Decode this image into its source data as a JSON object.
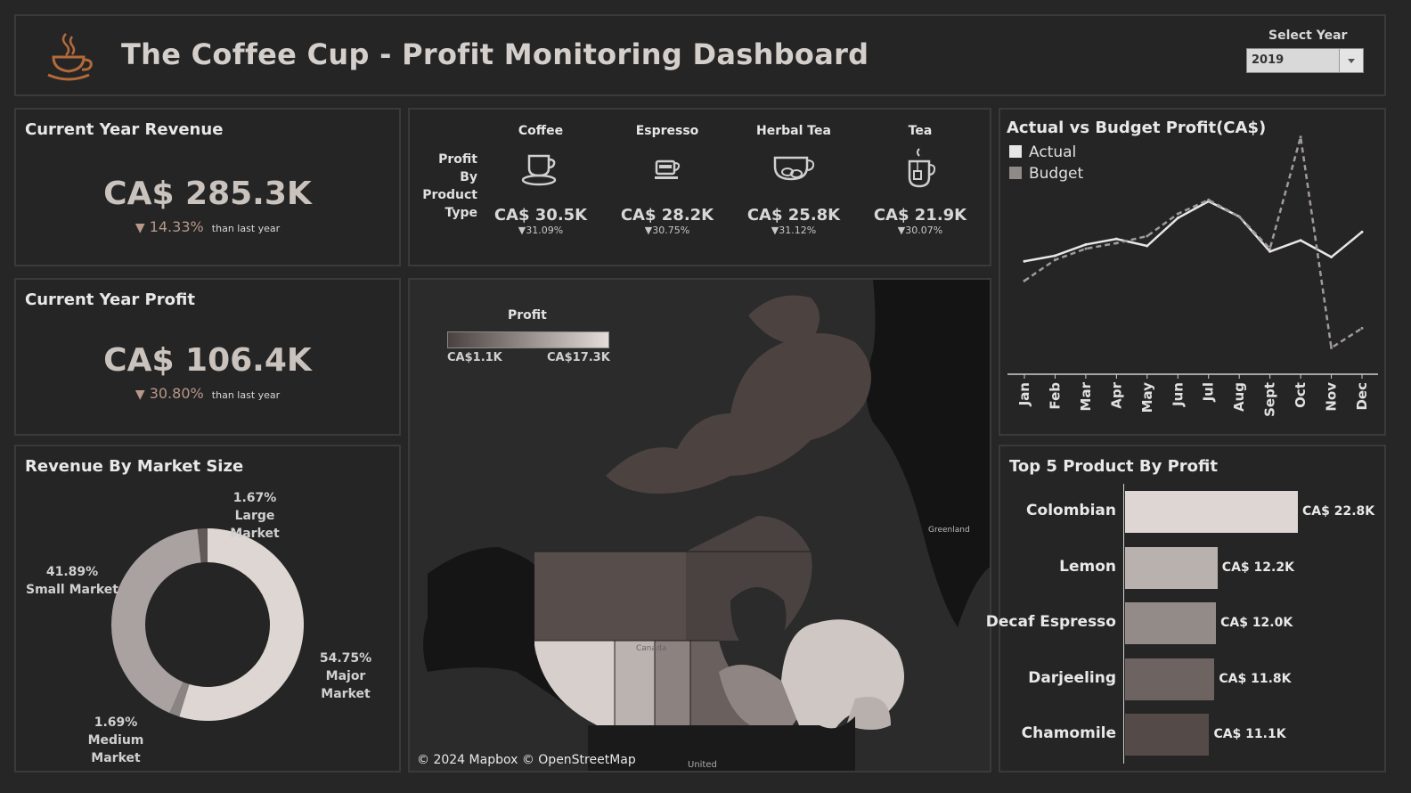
{
  "header": {
    "title": "The Coffee Cup - Profit Monitoring Dashboard",
    "year_label": "Select Year",
    "year_value": "2019"
  },
  "revenue": {
    "title": "Current Year Revenue",
    "value": "CA$ 285.3K",
    "change": "14.33%",
    "suffix": "than last year"
  },
  "profit": {
    "title": "Current Year Profit",
    "value": "CA$ 106.4K",
    "change": "30.80%",
    "suffix": "than last year"
  },
  "products": {
    "label_lines": [
      "Profit",
      "By",
      "Product",
      "Type"
    ],
    "items": [
      {
        "name": "Coffee",
        "value": "CA$ 30.5K",
        "change": "31.09%",
        "icon": "coffee-cup-icon"
      },
      {
        "name": "Espresso",
        "value": "CA$ 28.2K",
        "change": "30.75%",
        "icon": "espresso-icon"
      },
      {
        "name": "Herbal Tea",
        "value": "CA$ 25.8K",
        "change": "31.12%",
        "icon": "herbal-tea-icon"
      },
      {
        "name": "Tea",
        "value": "CA$ 21.9K",
        "change": "30.07%",
        "icon": "tea-icon"
      }
    ]
  },
  "market": {
    "title": "Revenue By Market Size",
    "segments": [
      {
        "name": "Major Market",
        "pct": "54.75%",
        "value": 54.75,
        "color": "#ddd6d3"
      },
      {
        "name": "Medium Market",
        "pct": "1.69%",
        "value": 1.69,
        "color": "#8a8583"
      },
      {
        "name": "Small Market",
        "pct": "41.89%",
        "value": 41.89,
        "color": "#aaa2a0"
      },
      {
        "name": "Large Market",
        "pct": "1.67%",
        "value": 1.67,
        "color": "#5f5957"
      }
    ]
  },
  "map": {
    "legend_title": "Profit",
    "legend_min": "CA$1.1K",
    "legend_max": "CA$17.3K",
    "copyright": "© 2024 Mapbox © OpenStreetMap",
    "label_greenland": "Greenland",
    "label_united": "United",
    "label_canada": "Canada",
    "colors": {
      "high": "#e4dcd8",
      "mid": "#8c8380",
      "low": "#4a4240"
    }
  },
  "chart_data": {
    "type": "line",
    "title": "Actual vs Budget Profit(CA$)",
    "categories": [
      "Jan",
      "Feb",
      "Mar",
      "Apr",
      "May",
      "Jun",
      "Jul",
      "Aug",
      "Sept",
      "Oct",
      "Nov",
      "Dec"
    ],
    "series": [
      {
        "name": "Actual",
        "values": [
          7.9,
          8.3,
          9.1,
          9.5,
          9.0,
          11.0,
          12.2,
          11.1,
          8.6,
          9.4,
          8.2,
          10.0
        ],
        "color": "#e6e6e6"
      },
      {
        "name": "Budget",
        "values": [
          6.5,
          8.0,
          8.8,
          9.2,
          9.7,
          11.3,
          12.3,
          11.1,
          8.8,
          16.8,
          1.7,
          3.1
        ],
        "color": "#a09a98"
      }
    ],
    "ylim": [
      0,
      18
    ],
    "grid": false,
    "legend": "top-left"
  },
  "top5": {
    "title": "Top 5 Product By Profit",
    "items": [
      {
        "name": "Colombian",
        "label": "CA$ 22.8K",
        "value": 22.8,
        "color": "#ddd6d3"
      },
      {
        "name": "Lemon",
        "label": "CA$ 12.2K",
        "value": 12.2,
        "color": "#b9b1ae"
      },
      {
        "name": "Decaf Espresso",
        "label": "CA$ 12.0K",
        "value": 12.0,
        "color": "#938b88"
      },
      {
        "name": "Darjeeling",
        "label": "CA$ 11.8K",
        "value": 11.8,
        "color": "#6d6462"
      },
      {
        "name": "Chamomile",
        "label": "CA$ 11.1K",
        "value": 11.1,
        "color": "#544b49"
      }
    ]
  }
}
